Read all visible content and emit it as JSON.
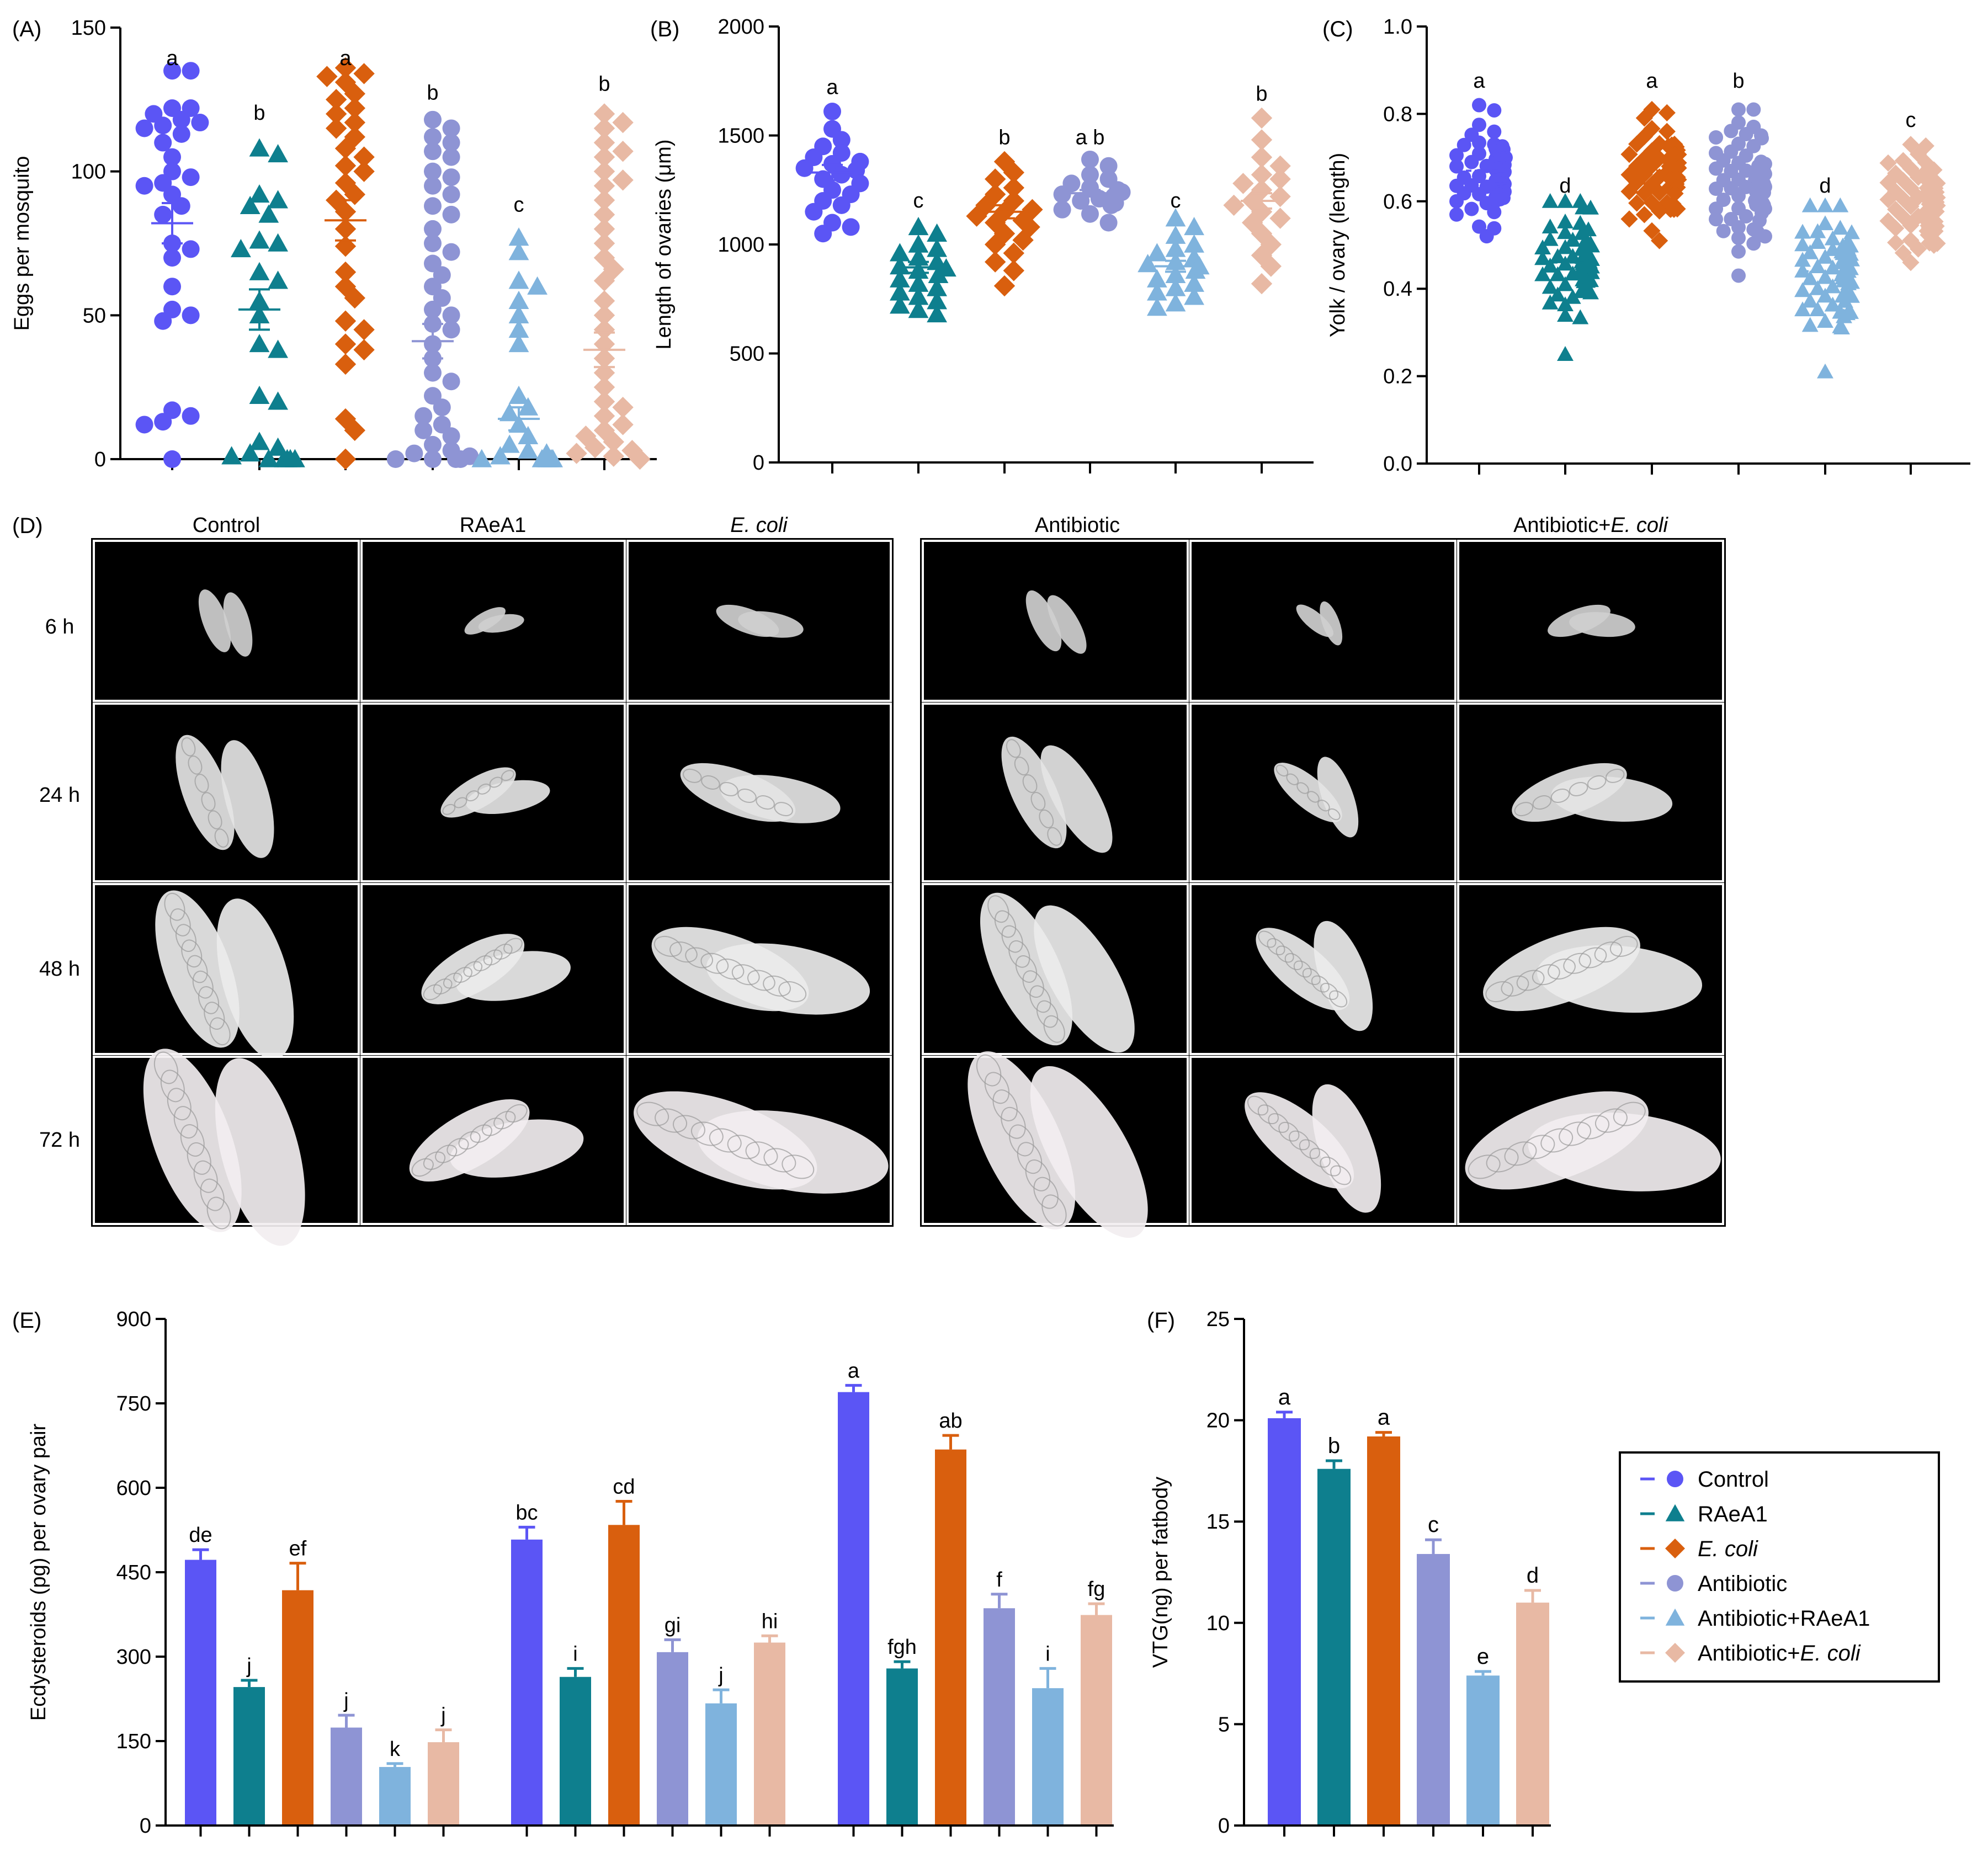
{
  "groups": [
    "Control",
    "RAeA1",
    "E. coli",
    "Antibiotic",
    "Antibiotic+RAeA1",
    "Antibiotic+E. coli"
  ],
  "legend": {
    "items": [
      {
        "name": "Control",
        "pre": "Control",
        "ital": "",
        "shape": "circle",
        "color": "#5b55f5"
      },
      {
        "name": "RAeA1",
        "pre": "RAeA1",
        "ital": "",
        "shape": "triangle",
        "color": "#0e7f8e"
      },
      {
        "name": "E. coli",
        "pre": "",
        "ital": "E. coli",
        "shape": "diamond",
        "color": "#d95f0e"
      },
      {
        "name": "Antibiotic",
        "pre": "Antibiotic",
        "ital": "",
        "shape": "circle",
        "color": "#8e94d4"
      },
      {
        "name": "Antibiotic+RAeA1",
        "pre": "Antibiotic+RAeA1",
        "ital": "",
        "shape": "triangle",
        "color": "#7fb3dd"
      },
      {
        "name": "Antibiotic+E. coli",
        "pre": "Antibiotic+",
        "ital": "E. coli",
        "shape": "diamond",
        "color": "#e8b9a4"
      }
    ]
  },
  "panelD": {
    "label": "(D)",
    "columns": [
      {
        "pre": "Control",
        "ital": ""
      },
      {
        "pre": "RAeA1",
        "ital": ""
      },
      {
        "pre": "",
        "ital": "E. coli"
      },
      {
        "pre": "Antibiotic",
        "ital": ""
      },
      {
        "pre": "",
        "ital": ""
      },
      {
        "pre": "Antibiotic+",
        "ital": "E. coli"
      }
    ],
    "rows": [
      "6 h",
      "24 h",
      "48 h",
      "72 h"
    ]
  },
  "chart_data": [
    {
      "id": "A",
      "label": "(A)",
      "type": "scatter",
      "ylabel": "Eggs per mosquito",
      "ylim": [
        0,
        150
      ],
      "yticks": [
        0,
        50,
        100,
        150
      ],
      "categories": [
        "Control",
        "RAeA1",
        "E. coli",
        "Antibiotic",
        "Antibiotic+RAeA1",
        "Antibiotic+E. coli"
      ],
      "means": [
        82,
        52,
        83,
        41,
        14,
        38
      ],
      "sems": [
        7,
        7,
        7,
        6,
        4,
        6
      ],
      "letters": [
        "a",
        "b",
        "a",
        "b",
        "c",
        "b"
      ],
      "letter_y": [
        137,
        118,
        137,
        125,
        86,
        128
      ],
      "series": [
        {
          "name": "Control",
          "values": [
            135,
            135,
            122,
            122,
            120,
            118,
            117,
            116,
            115,
            113,
            110,
            105,
            100,
            98,
            96,
            95,
            92,
            88,
            85,
            75,
            73,
            70,
            60,
            52,
            50,
            48,
            17,
            15,
            13,
            12,
            0
          ]
        },
        {
          "name": "RAeA1",
          "values": [
            108,
            106,
            92,
            90,
            88,
            85,
            76,
            75,
            73,
            65,
            62,
            55,
            50,
            40,
            38,
            22,
            20,
            6,
            4,
            2,
            1,
            0,
            0,
            0,
            0,
            0
          ]
        },
        {
          "name": "E. coli",
          "values": [
            136,
            134,
            133,
            131,
            127,
            125,
            122,
            120,
            117,
            115,
            112,
            108,
            105,
            102,
            100,
            96,
            92,
            90,
            86,
            80,
            74,
            65,
            60,
            56,
            48,
            45,
            40,
            38,
            33,
            14,
            10,
            0
          ]
        },
        {
          "name": "Antibiotic",
          "values": [
            118,
            115,
            112,
            110,
            107,
            105,
            100,
            98,
            95,
            92,
            88,
            85,
            80,
            75,
            72,
            68,
            64,
            60,
            56,
            52,
            50,
            47,
            45,
            40,
            35,
            30,
            27,
            22,
            18,
            15,
            12,
            10,
            8,
            5,
            3,
            2,
            1,
            0,
            0,
            0,
            0
          ]
        },
        {
          "name": "Antibiotic+RAeA1",
          "values": [
            77,
            72,
            62,
            60,
            55,
            50,
            45,
            40,
            22,
            18,
            16,
            12,
            8,
            5,
            3,
            2,
            1,
            0,
            0,
            0,
            0,
            0,
            0
          ]
        },
        {
          "name": "Antibiotic+E. coli",
          "values": [
            120,
            117,
            115,
            110,
            107,
            105,
            100,
            97,
            95,
            90,
            85,
            80,
            75,
            70,
            66,
            62,
            55,
            50,
            45,
            40,
            35,
            30,
            25,
            20,
            18,
            15,
            12,
            10,
            8,
            6,
            4,
            3,
            2,
            1,
            0
          ]
        }
      ]
    },
    {
      "id": "B",
      "label": "(B)",
      "type": "scatter",
      "ylabel": "Length of ovaries (μm)",
      "ylim": [
        0,
        2000
      ],
      "yticks": [
        0,
        500,
        1000,
        1500,
        2000
      ],
      "categories": [
        "Control",
        "RAeA1",
        "E. coli",
        "Antibiotic",
        "Antibiotic+RAeA1",
        "Antibiotic+E. coli"
      ],
      "means": [
        1330,
        895,
        1150,
        1235,
        900,
        1200
      ],
      "sems": [
        35,
        25,
        30,
        15,
        25,
        35
      ],
      "letters": [
        "a",
        "c",
        "b",
        "a b",
        "c",
        "b"
      ],
      "letter_y": [
        1690,
        1170,
        1460,
        1460,
        1170,
        1660
      ],
      "series": [
        {
          "name": "Control",
          "values": [
            1610,
            1530,
            1480,
            1450,
            1420,
            1400,
            1380,
            1370,
            1350,
            1340,
            1320,
            1300,
            1280,
            1250,
            1230,
            1200,
            1180,
            1150,
            1100,
            1080,
            1050
          ]
        },
        {
          "name": "RAeA1",
          "values": [
            1080,
            1050,
            1000,
            980,
            960,
            940,
            920,
            900,
            890,
            880,
            860,
            840,
            820,
            800,
            780,
            760,
            740,
            720,
            700,
            680
          ]
        },
        {
          "name": "E. coli",
          "values": [
            1380,
            1330,
            1300,
            1260,
            1230,
            1200,
            1180,
            1160,
            1150,
            1130,
            1110,
            1100,
            1080,
            1050,
            1020,
            1000,
            960,
            920,
            880,
            810
          ]
        },
        {
          "name": "Antibiotic",
          "values": [
            1390,
            1360,
            1320,
            1300,
            1280,
            1260,
            1250,
            1240,
            1230,
            1220,
            1210,
            1200,
            1190,
            1180,
            1160,
            1140,
            1100
          ]
        },
        {
          "name": "Antibiotic+RAeA1",
          "values": [
            1120,
            1080,
            1040,
            1000,
            980,
            960,
            940,
            920,
            910,
            900,
            880,
            860,
            840,
            820,
            800,
            780,
            760,
            730,
            710
          ]
        },
        {
          "name": "Antibiotic+E. coli",
          "values": [
            1580,
            1480,
            1400,
            1360,
            1320,
            1300,
            1280,
            1250,
            1220,
            1200,
            1180,
            1150,
            1120,
            1100,
            1050,
            1000,
            950,
            900,
            820
          ]
        }
      ]
    },
    {
      "id": "C",
      "label": "(C)",
      "type": "scatter",
      "ylabel": "Yolk / ovary (length)",
      "ylim": [
        0,
        1.0
      ],
      "yticks": [
        "0.0",
        "0.2",
        "0.4",
        "0.6",
        "0.8",
        "1.0"
      ],
      "categories": [
        "Control",
        "RAeA1",
        "E. coli",
        "Antibiotic",
        "Antibiotic+RAeA1",
        "Antibiotic+E. coli"
      ],
      "means": [
        0.67,
        0.46,
        0.67,
        0.63,
        0.44,
        0.6
      ],
      "sems": [
        0.01,
        0.01,
        0.01,
        0.01,
        0.01,
        0.01
      ],
      "letters": [
        "a",
        "d",
        "a",
        "b",
        "d",
        "c"
      ],
      "letter_y": [
        0.86,
        0.62,
        0.86,
        0.86,
        0.62,
        0.77
      ],
      "distributions": [
        {
          "name": "Control",
          "mean": 0.67,
          "min": 0.52,
          "max": 0.82,
          "n": 70
        },
        {
          "name": "RAeA1",
          "mean": 0.46,
          "min": 0.25,
          "max": 0.6,
          "n": 70
        },
        {
          "name": "E. coli",
          "mean": 0.67,
          "min": 0.51,
          "max": 0.81,
          "n": 70
        },
        {
          "name": "Antibiotic",
          "mean": 0.63,
          "min": 0.43,
          "max": 0.81,
          "n": 70
        },
        {
          "name": "Antibiotic+RAeA1",
          "mean": 0.44,
          "min": 0.21,
          "max": 0.59,
          "n": 70
        },
        {
          "name": "Antibiotic+E. coli",
          "mean": 0.6,
          "min": 0.46,
          "max": 0.73,
          "n": 70
        }
      ]
    },
    {
      "id": "E",
      "label": "(E)",
      "type": "bar",
      "ylabel": "Ecdysteroids (pg) per ovary pair",
      "ylim": [
        0,
        900
      ],
      "yticks": [
        0,
        150,
        300,
        450,
        600,
        750,
        900
      ],
      "categories": [
        "Control",
        "RAeA1",
        "E. coli",
        "Antibiotic",
        "Antibiotic+RAeA1",
        "Antibiotic+E. coli"
      ],
      "clusters": [
        {
          "values": [
            472,
            246,
            418,
            174,
            104,
            148
          ],
          "errors": [
            18,
            12,
            48,
            22,
            6,
            22
          ],
          "letters": [
            "de",
            "j",
            "ef",
            "j",
            "k",
            "j"
          ]
        },
        {
          "values": [
            508,
            264,
            534,
            308,
            217,
            325
          ],
          "errors": [
            22,
            15,
            42,
            22,
            24,
            12
          ],
          "letters": [
            "bc",
            "i",
            "cd",
            "gi",
            "j",
            "hi"
          ]
        },
        {
          "values": [
            770,
            279,
            668,
            386,
            244,
            374
          ],
          "errors": [
            12,
            12,
            25,
            25,
            35,
            20
          ],
          "letters": [
            "a",
            "fgh",
            "ab",
            "f",
            "i",
            "fg"
          ]
        }
      ]
    },
    {
      "id": "F",
      "label": "(F)",
      "type": "bar",
      "ylabel": "VTG(ng) per fatbody",
      "ylim": [
        0,
        25
      ],
      "yticks": [
        0,
        5,
        10,
        15,
        20,
        25
      ],
      "categories": [
        "Control",
        "RAeA1",
        "E. coli",
        "Antibiotic",
        "Antibiotic+RAeA1",
        "Antibiotic+E. coli"
      ],
      "values": [
        20.1,
        17.6,
        19.2,
        13.4,
        7.4,
        11
      ],
      "errors": [
        0.3,
        0.4,
        0.2,
        0.7,
        0.2,
        0.6
      ],
      "letters": [
        "a",
        "b",
        "a",
        "c",
        "e",
        "d"
      ]
    }
  ]
}
